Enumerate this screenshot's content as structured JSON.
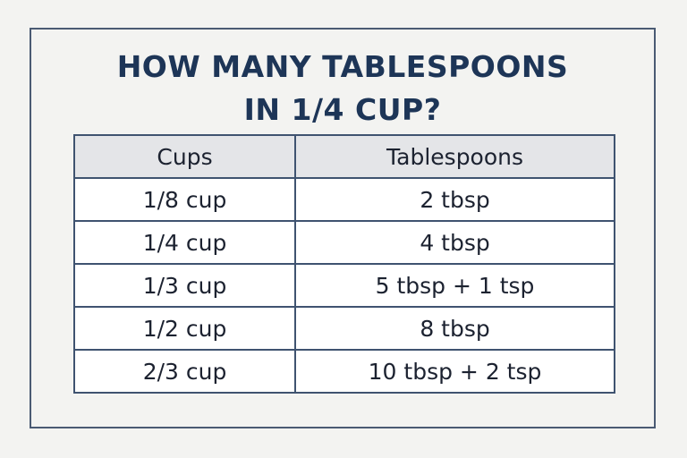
{
  "title": {
    "line1": "HOW MANY TABLESPOONS",
    "line2": "IN 1/4 CUP?"
  },
  "table": {
    "headers": [
      "Cups",
      "Tablespoons"
    ],
    "rows": [
      [
        "1/8 cup",
        "2 tbsp"
      ],
      [
        "1/4 cup",
        "4 tbsp"
      ],
      [
        "1/3 cup",
        "5 tbsp + 1 tsp"
      ],
      [
        "1/2 cup",
        "8 tbsp"
      ],
      [
        "2/3 cup",
        "10 tbsp + 2 tsp"
      ]
    ]
  },
  "colors": {
    "title": "#1d3557",
    "border": "#3f5370",
    "header_bg": "#e4e5e8",
    "page_bg": "#f3f3f1"
  }
}
